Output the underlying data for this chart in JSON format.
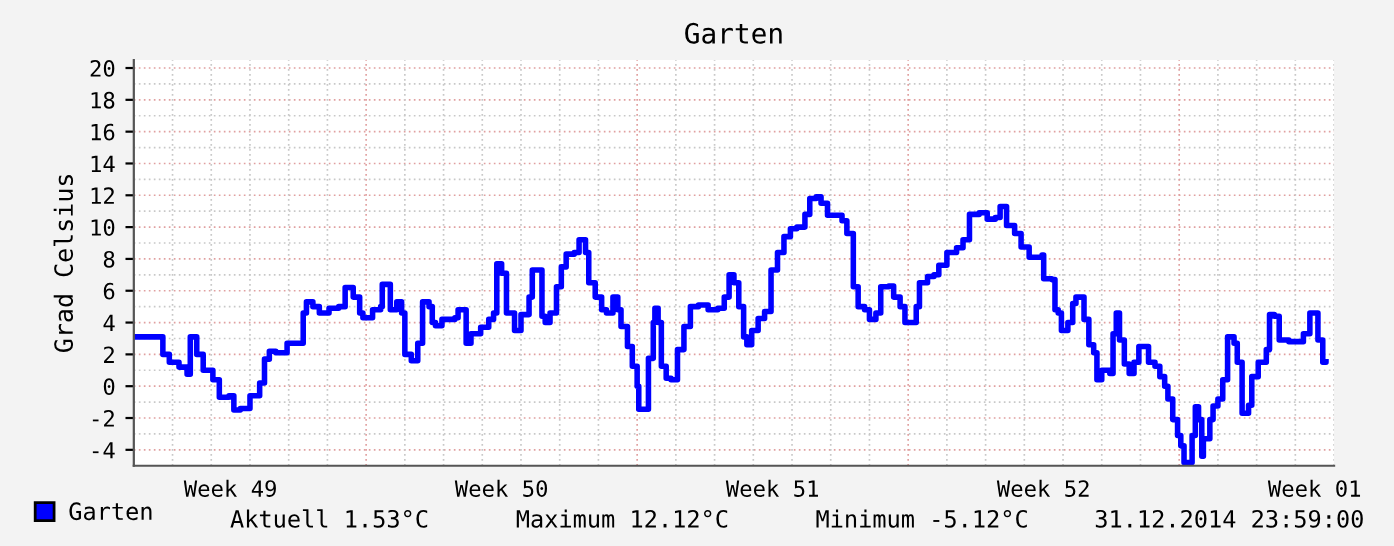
{
  "chart_data": {
    "type": "step",
    "title": "Garten",
    "ylabel": "Grad Celsius",
    "xlim": [
      "2014-12-01T00:00",
      "2015-01-01T00:00"
    ],
    "xticks": [
      {
        "value": "2014-12-03T12:00",
        "label": "Week 49"
      },
      {
        "value": "2014-12-10T12:00",
        "label": "Week 50"
      },
      {
        "value": "2014-12-17T12:00",
        "label": "Week 51"
      },
      {
        "value": "2014-12-24T12:00",
        "label": "Week 52"
      },
      {
        "value": "2014-12-31T12:00",
        "label": "Week 01"
      }
    ],
    "ylim": [
      -5,
      20.5
    ],
    "yticks": [
      -4,
      -2,
      0,
      2,
      4,
      6,
      8,
      10,
      12,
      14,
      16,
      18,
      20
    ],
    "grid": true,
    "legend": "bottom",
    "line_style": "solid",
    "annotations": [
      "Aktuell 1.53°C",
      "Maximum 12.12°C",
      "Minimum -5.12°C",
      "31.12.2014 23:59:00"
    ],
    "series": [
      {
        "name": "Garten",
        "color": "#0000ff",
        "x": [
          "2014-12-01T00:00",
          "2014-12-01T14:00",
          "2014-12-01T18:00",
          "2014-12-01T22:00",
          "2014-12-02T04:00",
          "2014-12-02T09:00",
          "2014-12-02T11:00",
          "2014-12-02T15:00",
          "2014-12-02T19:00",
          "2014-12-03T01:00",
          "2014-12-03T05:00",
          "2014-12-03T11:00",
          "2014-12-03T14:00",
          "2014-12-03T18:00",
          "2014-12-04T00:00",
          "2014-12-04T06:00",
          "2014-12-04T09:00",
          "2014-12-04T12:00",
          "2014-12-04T16:00",
          "2014-12-04T23:00",
          "2014-12-05T06:00",
          "2014-12-05T09:00",
          "2014-12-05T11:00",
          "2014-12-05T15:00",
          "2014-12-05T19:00",
          "2014-12-06T01:00",
          "2014-12-06T07:00",
          "2014-12-06T11:00",
          "2014-12-06T16:00",
          "2014-12-06T20:00",
          "2014-12-06T22:00",
          "2014-12-07T04:00",
          "2014-12-07T09:00",
          "2014-12-07T10:00",
          "2014-12-07T13:00",
          "2014-12-07T15:00",
          "2014-12-07T19:00",
          "2014-12-07T22:00",
          "2014-12-08T00:00",
          "2014-12-08T04:00",
          "2014-12-08T08:00",
          "2014-12-08T11:00",
          "2014-12-08T15:00",
          "2014-12-08T17:00",
          "2014-12-08T19:00",
          "2014-12-08T23:00",
          "2014-12-09T07:00",
          "2014-12-09T09:00",
          "2014-12-09T11:00",
          "2014-12-09T14:00",
          "2014-12-09T17:00",
          "2014-12-09T23:00",
          "2014-12-10T04:00",
          "2014-12-10T07:00",
          "2014-12-10T09:00",
          "2014-12-10T12:00",
          "2014-12-10T15:00",
          "2014-12-10T20:00",
          "2014-12-11T00:00",
          "2014-12-11T05:00",
          "2014-12-11T07:00",
          "2014-12-11T11:00",
          "2014-12-11T13:00",
          "2014-12-11T15:00",
          "2014-12-11T18:00",
          "2014-12-11T22:00",
          "2014-12-12T01:00",
          "2014-12-12T04:00",
          "2014-12-12T09:00",
          "2014-12-12T12:00",
          "2014-12-12T16:00",
          "2014-12-12T18:00",
          "2014-12-12T22:00",
          "2014-12-13T02:00",
          "2014-12-13T05:00",
          "2014-12-13T09:00",
          "2014-12-13T12:00",
          "2014-12-13T14:00",
          "2014-12-13T18:00",
          "2014-12-13T21:00",
          "2014-12-14T00:00",
          "2014-12-14T01:00",
          "2014-12-14T05:00",
          "2014-12-14T07:00",
          "2014-12-14T10:00",
          "2014-12-14T11:00",
          "2014-12-14T13:00",
          "2014-12-14T15:00",
          "2014-12-14T18:00",
          "2014-12-14T21:00",
          "2014-12-15T01:00",
          "2014-12-15T05:00",
          "2014-12-15T09:00",
          "2014-12-15T14:00",
          "2014-12-15T20:00",
          "2014-12-16T02:00",
          "2014-12-16T06:00",
          "2014-12-16T09:00",
          "2014-12-16T12:00",
          "2014-12-16T15:00",
          "2014-12-16T18:00",
          "2014-12-16T20:00",
          "2014-12-16T23:00",
          "2014-12-17T03:00",
          "2014-12-17T07:00",
          "2014-12-17T11:00",
          "2014-12-17T15:00",
          "2014-12-17T19:00",
          "2014-12-17T23:00",
          "2014-12-18T03:00",
          "2014-12-18T08:00",
          "2014-12-18T11:00",
          "2014-12-18T15:00",
          "2014-12-18T18:00",
          "2014-12-18T22:00",
          "2014-12-19T03:00",
          "2014-12-19T07:00",
          "2014-12-19T10:00",
          "2014-12-19T14:00",
          "2014-12-19T17:00",
          "2014-12-19T21:00",
          "2014-12-20T00:00",
          "2014-12-20T04:00",
          "2014-12-20T07:00",
          "2014-12-20T12:00",
          "2014-12-20T15:00",
          "2014-12-20T19:00",
          "2014-12-20T22:00",
          "2014-12-21T01:00",
          "2014-12-21T05:00",
          "2014-12-21T07:00",
          "2014-12-21T12:00",
          "2014-12-21T16:00",
          "2014-12-21T19:00",
          "2014-12-22T00:00",
          "2014-12-22T06:00",
          "2014-12-22T10:00",
          "2014-12-22T14:00",
          "2014-12-22T20:00",
          "2014-12-23T01:00",
          "2014-12-23T06:00",
          "2014-12-23T09:00",
          "2014-12-23T13:00",
          "2014-12-23T18:00",
          "2014-12-23T22:00",
          "2014-12-24T03:00",
          "2014-12-24T11:00",
          "2014-12-24T12:00",
          "2014-12-24T17:00",
          "2014-12-24T19:00",
          "2014-12-24T21:00",
          "2014-12-24T23:00",
          "2014-12-25T03:00",
          "2014-12-25T06:00",
          "2014-12-25T08:00",
          "2014-12-25T11:00",
          "2014-12-25T13:00",
          "2014-12-25T16:00",
          "2014-12-25T19:00",
          "2014-12-25T21:00",
          "2014-12-26T00:00",
          "2014-12-26T05:00",
          "2014-12-26T07:00",
          "2014-12-26T09:00",
          "2014-12-26T11:00",
          "2014-12-26T14:00",
          "2014-12-26T17:00",
          "2014-12-26T20:00",
          "2014-12-26T23:00",
          "2014-12-27T02:00",
          "2014-12-27T05:00",
          "2014-12-27T09:00",
          "2014-12-27T12:00",
          "2014-12-27T15:00",
          "2014-12-27T17:00",
          "2014-12-27T20:00",
          "2014-12-27T23:00",
          "2014-12-28T01:00",
          "2014-12-28T03:00",
          "2014-12-28T06:00",
          "2014-12-28T08:00",
          "2014-12-28T10:00",
          "2014-12-28T12:00",
          "2014-12-28T14:00",
          "2014-12-28T15:00",
          "2014-12-28T19:00",
          "2014-12-28T21:00",
          "2014-12-29T00:00",
          "2014-12-29T03:00",
          "2014-12-29T06:00",
          "2014-12-29T10:00",
          "2014-12-29T12:00",
          "2014-12-29T15:00",
          "2014-12-29T19:00",
          "2014-12-29T21:00",
          "2014-12-30T01:00",
          "2014-12-30T06:00",
          "2014-12-30T08:00",
          "2014-12-30T11:00",
          "2014-12-30T14:00",
          "2014-12-30T20:00",
          "2014-12-31T00:00",
          "2014-12-31T05:00",
          "2014-12-31T09:00",
          "2014-12-31T13:00",
          "2014-12-31T14:00",
          "2014-12-31T17:00",
          "2014-12-31T19:00"
        ],
        "values": [
          3.1,
          3.1,
          2.0,
          1.5,
          1.2,
          0.75,
          3.1,
          2.0,
          1.0,
          0.4,
          -0.7,
          -0.6,
          -1.5,
          -1.4,
          -0.6,
          0.2,
          1.7,
          2.2,
          2.1,
          2.7,
          2.7,
          4.6,
          5.3,
          5.0,
          4.6,
          4.9,
          5.0,
          6.2,
          5.6,
          4.6,
          4.3,
          4.8,
          5.0,
          6.4,
          6.4,
          4.8,
          5.3,
          4.6,
          2.0,
          1.6,
          2.7,
          5.3,
          5.0,
          4.0,
          3.8,
          4.2,
          4.3,
          4.8,
          4.8,
          2.7,
          3.3,
          3.7,
          4.2,
          4.6,
          7.7,
          7.1,
          4.6,
          3.5,
          4.5,
          5.6,
          7.3,
          7.3,
          4.4,
          4.0,
          4.6,
          6.25,
          7.5,
          8.3,
          8.4,
          9.2,
          8.4,
          6.5,
          5.6,
          4.8,
          4.6,
          5.6,
          4.8,
          3.75,
          2.5,
          1.25,
          0.0,
          -1.45,
          -1.45,
          1.75,
          4.0,
          4.9,
          4.0,
          1.25,
          0.5,
          0.4,
          2.3,
          3.75,
          5.0,
          5.1,
          4.8,
          4.9,
          5.6,
          7.0,
          6.5,
          5.0,
          3.1,
          2.6,
          3.5,
          4.25,
          4.7,
          7.3,
          8.4,
          9.4,
          9.9,
          10.0,
          10.8,
          11.8,
          11.9,
          11.5,
          10.75,
          10.75,
          10.4,
          9.6,
          6.25,
          5.0,
          4.8,
          4.2,
          4.6,
          6.25,
          6.3,
          5.6,
          5.0,
          4.0,
          4.0,
          5.0,
          6.5,
          6.9,
          7.0,
          7.6,
          8.4,
          8.7,
          9.2,
          10.8,
          10.9,
          10.5,
          10.6,
          11.3,
          10.1,
          9.6,
          8.75,
          8.1,
          8.25,
          6.75,
          6.7,
          4.8,
          4.6,
          3.5,
          4.0,
          5.2,
          5.6,
          5.6,
          4.2,
          2.6,
          2.1,
          0.4,
          1.0,
          0.8,
          3.3,
          4.6,
          2.9,
          1.4,
          0.8,
          1.5,
          2.5,
          2.5,
          1.5,
          1.25,
          0.6,
          0.0,
          -0.8,
          -2.1,
          -3.1,
          -3.75,
          -4.8,
          -4.8,
          -3.1,
          -1.3,
          -2.1,
          -4.4,
          -3.3,
          -2.1,
          -1.25,
          -0.8,
          0.4,
          3.1,
          2.7,
          1.5,
          -1.7,
          -1.2,
          0.6,
          1.5,
          2.3,
          4.5,
          4.4,
          2.9,
          2.8,
          2.8,
          3.3,
          4.6,
          4.6,
          2.9,
          1.5,
          1.53
        ]
      }
    ]
  }
}
